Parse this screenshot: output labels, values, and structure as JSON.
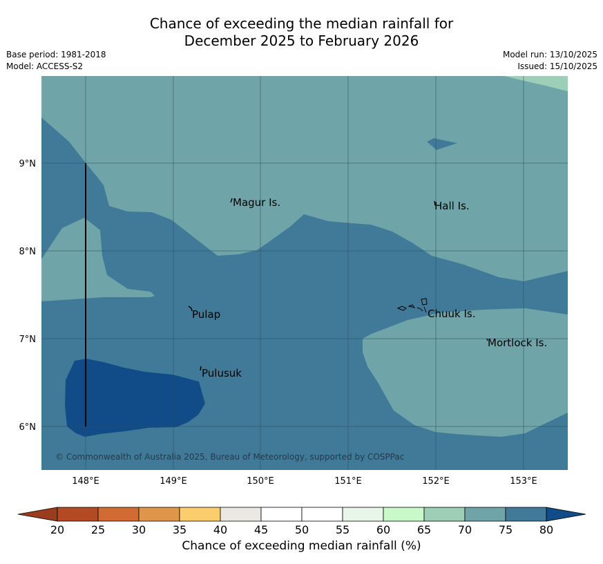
{
  "title": {
    "line1": "Chance of exceeding the median rainfall for",
    "line2": "December 2025 to February 2026"
  },
  "meta": {
    "base_period": "Base period: 1981-2018",
    "model": "Model: ACCESS-S2",
    "model_run": "Model run: 13/10/2025",
    "issued": "Issued: 15/10/2025"
  },
  "map": {
    "lat_labels": [
      "9°N",
      "8°N",
      "7°N",
      "6°N"
    ],
    "lon_labels": [
      "148°E",
      "149°E",
      "150°E",
      "151°E",
      "152°E",
      "153°E"
    ],
    "places": [
      "Magur Is.",
      "Hall Is.",
      "Pulap",
      "Chuuk Is.",
      "Mortlock Is.",
      "Pulusuk"
    ],
    "copyright": "© Commonwealth of Australia 2025, Bureau of Meteorology, supported by COSPPac",
    "fill_colors": {
      "band_65_70": "#9ccfb6",
      "band_70_75": "#6fa5a8",
      "band_75_80": "#417a98",
      "band_80_plus": "#124c88"
    }
  },
  "colorbar": {
    "ticks": [
      "20",
      "25",
      "30",
      "35",
      "40",
      "45",
      "50",
      "55",
      "60",
      "65",
      "70",
      "75",
      "80"
    ],
    "colors": [
      "#993d1e",
      "#b44a24",
      "#d26a34",
      "#e0964a",
      "#fccd6d",
      "#ebe8e3",
      "#ffffff",
      "#ffffff",
      "#e8f5e9",
      "#c9f9c9",
      "#9ccfb6",
      "#6fa5a8",
      "#417a98",
      "#124c88"
    ],
    "label": "Chance of exceeding median rainfall (%)"
  }
}
